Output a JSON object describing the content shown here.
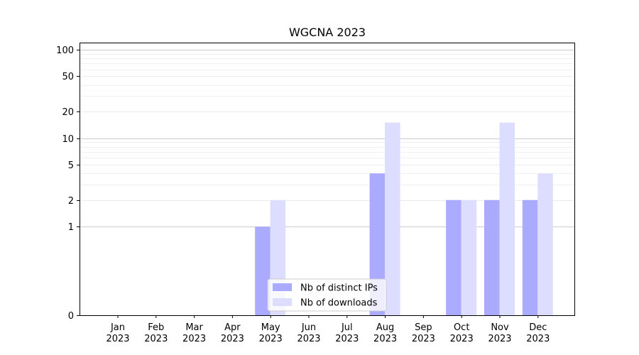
{
  "chart_data": {
    "type": "bar",
    "title": "WGCNA 2023",
    "xlabel": "",
    "ylabel": "",
    "y_scale": "symlog",
    "ylim": [
      0,
      120
    ],
    "y_ticks": [
      0,
      1,
      2,
      5,
      10,
      20,
      50,
      100
    ],
    "y_tick_labels": [
      "0",
      "1",
      "2",
      "5",
      "10",
      "20",
      "50",
      "100"
    ],
    "grid": "horizontal",
    "legend_position": "bottom-center",
    "categories": [
      [
        "Jan",
        "2023"
      ],
      [
        "Feb",
        "2023"
      ],
      [
        "Mar",
        "2023"
      ],
      [
        "Apr",
        "2023"
      ],
      [
        "May",
        "2023"
      ],
      [
        "Jun",
        "2023"
      ],
      [
        "Jul",
        "2023"
      ],
      [
        "Aug",
        "2023"
      ],
      [
        "Sep",
        "2023"
      ],
      [
        "Oct",
        "2023"
      ],
      [
        "Nov",
        "2023"
      ],
      [
        "Dec",
        "2023"
      ]
    ],
    "series": [
      {
        "name": "Nb of distinct IPs",
        "color": "#aaaaff",
        "values": [
          0,
          0,
          0,
          0,
          1,
          0,
          0,
          4,
          0,
          2,
          2,
          2
        ]
      },
      {
        "name": "Nb of downloads",
        "color": "#ddddff",
        "values": [
          0,
          0,
          0,
          0,
          2,
          0,
          0,
          15,
          0,
          2,
          15,
          4
        ]
      }
    ]
  }
}
